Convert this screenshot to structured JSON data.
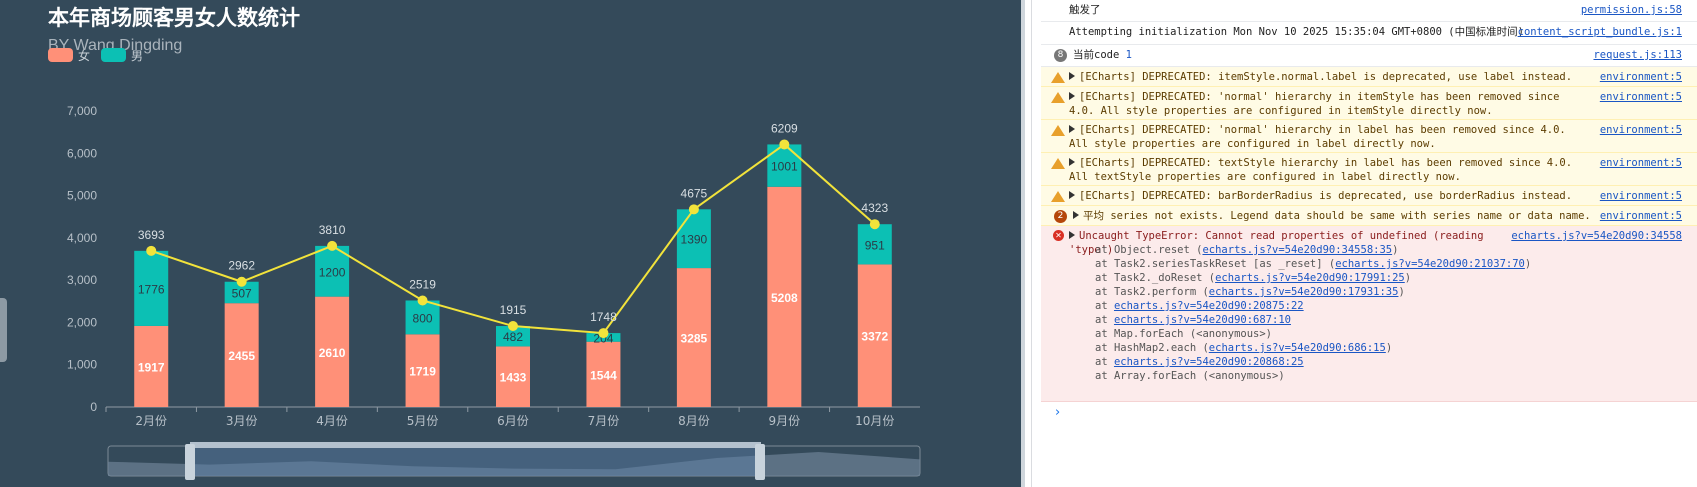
{
  "chart": {
    "title": "本年商场顾客男女人数统计",
    "subtitle": "BY Wang Dingding",
    "legend": [
      {
        "label": "女",
        "color": "#ff9078"
      },
      {
        "label": "男",
        "color": "#0cc0b4"
      }
    ],
    "yaxis_ticks": [
      "0",
      "1,000",
      "2,000",
      "3,000",
      "4,000",
      "5,000",
      "6,000",
      "7,000"
    ],
    "colors": {
      "female": "#ff9078",
      "male": "#0cc0b4",
      "line": "#f2e33b",
      "background": "#344a5a"
    }
  },
  "chart_data": {
    "type": "bar",
    "stacked": true,
    "categories": [
      "2月份",
      "3月份",
      "4月份",
      "5月份",
      "6月份",
      "7月份",
      "8月份",
      "9月份",
      "10月份"
    ],
    "series": [
      {
        "name": "女",
        "type": "bar",
        "values": [
          1917,
          2455,
          2610,
          1719,
          1433,
          1544,
          3285,
          5208,
          3372
        ]
      },
      {
        "name": "男",
        "type": "bar",
        "values": [
          1776,
          507,
          1200,
          800,
          482,
          204,
          1390,
          1001,
          951
        ]
      },
      {
        "type": "line",
        "values": [
          3693,
          2962,
          3810,
          2519,
          1915,
          1748,
          4675,
          6209,
          4323
        ]
      }
    ],
    "ylim": [
      0,
      7000
    ],
    "grid": false,
    "legend_position": "top-left",
    "has_datazoom_slider": true
  },
  "console": {
    "messages": [
      {
        "level": "info",
        "text": "触发了",
        "source": "permission.js:58"
      },
      {
        "level": "info",
        "text": "Attempting initialization Mon Nov 10 2025 15:35:04 GMT+0800 (中国标准时间)",
        "source": "content_script_bundle.js:1"
      },
      {
        "level": "info",
        "count": "8",
        "text": "当前code",
        "value": "1",
        "source": "request.js:113"
      },
      {
        "level": "warn",
        "text": "[ECharts] DEPRECATED: itemStyle.normal.label is deprecated, use label instead.",
        "source": "environment:5"
      },
      {
        "level": "warn",
        "text": "[ECharts] DEPRECATED: 'normal' hierarchy in itemStyle has been removed since 4.0. All style properties are configured in itemStyle directly now.",
        "source": "environment:5"
      },
      {
        "level": "warn",
        "text": "[ECharts] DEPRECATED: 'normal' hierarchy in label has been removed since 4.0. All style properties are configured in label directly now.",
        "source": "environment:5"
      },
      {
        "level": "warn",
        "text": "[ECharts] DEPRECATED: textStyle hierarchy in label has been removed since 4.0. All textStyle properties are configured in label directly now.",
        "source": "environment:5"
      },
      {
        "level": "warn",
        "text": "[ECharts] DEPRECATED: barBorderRadius is deprecated, use borderRadius instead.",
        "source": "environment:5"
      },
      {
        "level": "warn",
        "count": "2",
        "text": "平均 series not exists. Legend data should be same with series name or data name.",
        "source": "environment:5"
      },
      {
        "level": "error",
        "text": "Uncaught TypeError: Cannot read properties of undefined (reading 'type')",
        "source": "echarts.js?v=54e20d90:34558"
      }
    ],
    "stack": [
      {
        "prefix": "at Object.reset (",
        "link": "echarts.js?v=54e20d90:34558:35",
        "suffix": ")"
      },
      {
        "prefix": "at Task2.seriesTaskReset [as _reset] (",
        "link": "echarts.js?v=54e20d90:21037:70",
        "suffix": ")"
      },
      {
        "prefix": "at Task2._doReset (",
        "link": "echarts.js?v=54e20d90:17991:25",
        "suffix": ")"
      },
      {
        "prefix": "at Task2.perform (",
        "link": "echarts.js?v=54e20d90:17931:35",
        "suffix": ")"
      },
      {
        "prefix": "at ",
        "link": "echarts.js?v=54e20d90:20875:22",
        "suffix": ""
      },
      {
        "prefix": "at ",
        "link": "echarts.js?v=54e20d90:687:10",
        "suffix": ""
      },
      {
        "prefix": "at Map.forEach (<anonymous>)",
        "link": "",
        "suffix": ""
      },
      {
        "prefix": "at HashMap2.each (",
        "link": "echarts.js?v=54e20d90:686:15",
        "suffix": ")"
      },
      {
        "prefix": "at ",
        "link": "echarts.js?v=54e20d90:20868:25",
        "suffix": ""
      },
      {
        "prefix": "at Array.forEach (<anonymous>)",
        "link": "",
        "suffix": ""
      }
    ],
    "prompt_symbol": "›"
  }
}
